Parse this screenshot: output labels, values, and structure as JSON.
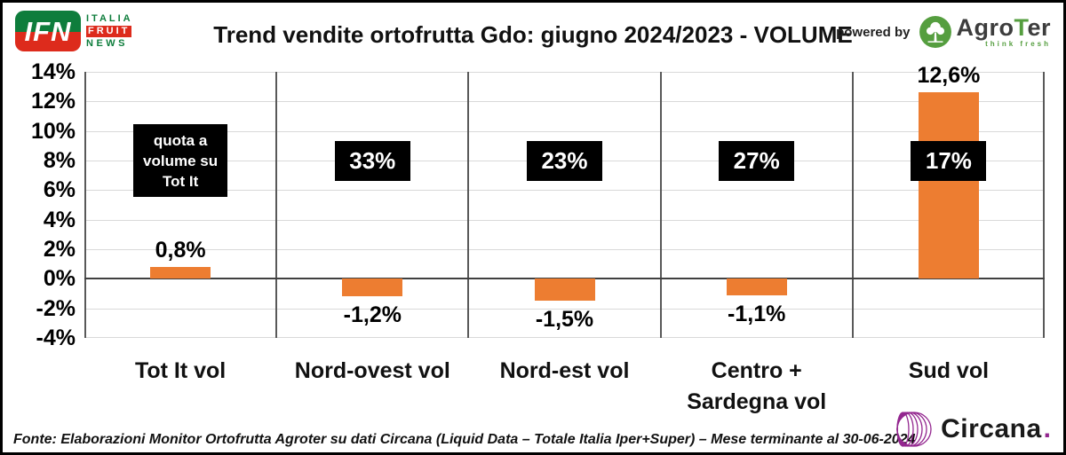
{
  "header": {
    "logo_ifn": {
      "acronym": "IFN",
      "line1": "ITALIA",
      "line2": "FRUIT",
      "line3": "NEWS"
    },
    "powered_by": "powered by",
    "agroter": {
      "part1": "Agro",
      "part2": "T",
      "part3": "er",
      "tagline": "think fresh"
    }
  },
  "chart_data": {
    "type": "bar",
    "title": "Trend vendite ortofrutta Gdo: giugno 2024/2023 - VOLUME",
    "categories": [
      "Tot It vol",
      "Nord-ovest vol",
      "Nord-est vol",
      "Centro + Sardegna vol",
      "Sud vol"
    ],
    "values": [
      0.8,
      -1.2,
      -1.5,
      -1.1,
      12.6
    ],
    "value_labels": [
      "0,8%",
      "-1,2%",
      "-1,5%",
      "-1,1%",
      "12,6%"
    ],
    "quota_boxes": [
      "quota a volume su Tot It",
      "33%",
      "23%",
      "27%",
      "17%"
    ],
    "ylim": [
      -4,
      14
    ],
    "ytick_step": 2,
    "ytick_labels": [
      "14%",
      "12%",
      "10%",
      "8%",
      "6%",
      "4%",
      "2%",
      "0%",
      "-2%",
      "-4%"
    ],
    "xlabel": "",
    "ylabel": "",
    "grid": true,
    "legend_position": "none"
  },
  "footer": {
    "source": "Fonte: Elaborazioni Monitor Ortofrutta Agroter su dati Circana (Liquid Data – Totale Italia Iper+Super) – Mese terminante al 30-06-2024"
  },
  "circana": {
    "name": "Circana",
    "dot": "."
  },
  "colors": {
    "bar_color": "#ED7D31",
    "quota_bg": "#000000",
    "quota_text": "#FFFFFF",
    "gridline": "#D9D9D9",
    "zero_line": "#404040",
    "divider": "#595959",
    "ifn_green": "#0E7D3C",
    "ifn_red": "#DD2B1C",
    "agroter_green": "#559E3F",
    "circana_purple": "#93268F"
  }
}
